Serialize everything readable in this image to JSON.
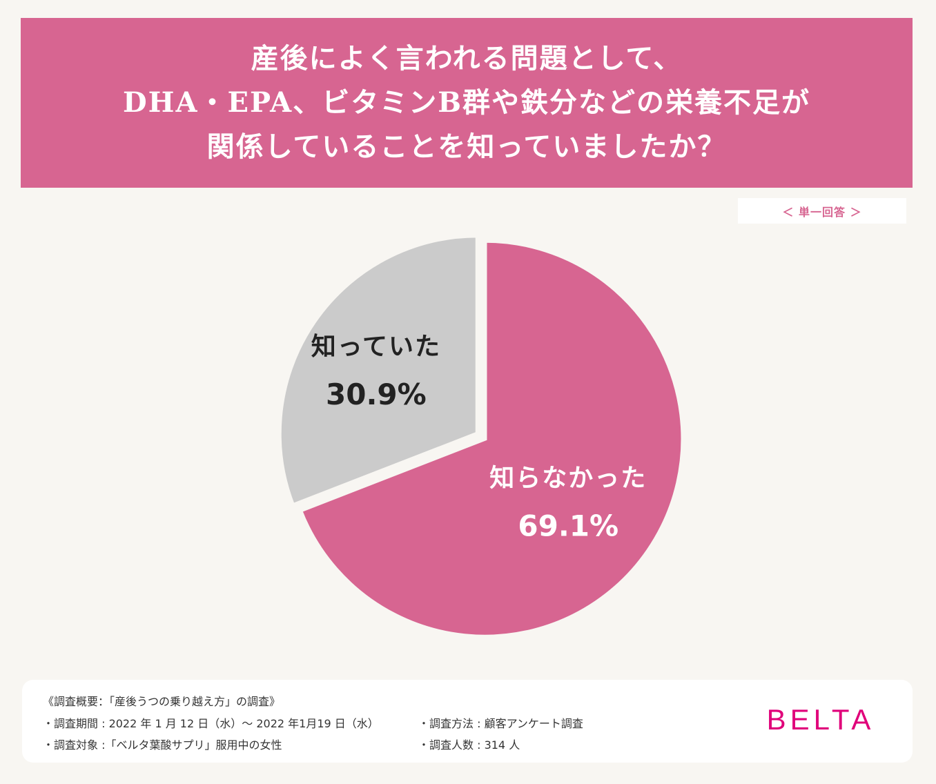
{
  "title": {
    "lines": [
      "産後によく言われる問題として、",
      "DHA・EPA、ビタミンB群や鉄分などの栄養不足が",
      "関係していることを知っていましたか？"
    ]
  },
  "answer_type": "＜ 単一回答 ＞",
  "chart_data": {
    "type": "pie",
    "title": "",
    "slices": [
      {
        "label": "知らなかった",
        "value": 69.1,
        "value_label": "69.1%",
        "color": "#d76591",
        "text_color": "#ffffff"
      },
      {
        "label": "知っていた",
        "value": 30.9,
        "value_label": "30.9%",
        "color": "#cbcbcb",
        "text_color": "#222222"
      }
    ]
  },
  "footer": {
    "heading": "《調査概要：「産後うつの乗り越え方」の調査》",
    "period": "・調査期間 : 2022 年 1 月 12 日（水）～ 2022 年1月19 日（水）",
    "target": "・調査対象 :「ベルタ葉酸サプリ」服用中の女性",
    "method": "・調査方法 : 顧客アンケート調査",
    "count": "・調査人数 : 314 人"
  },
  "brand": "BELTA"
}
